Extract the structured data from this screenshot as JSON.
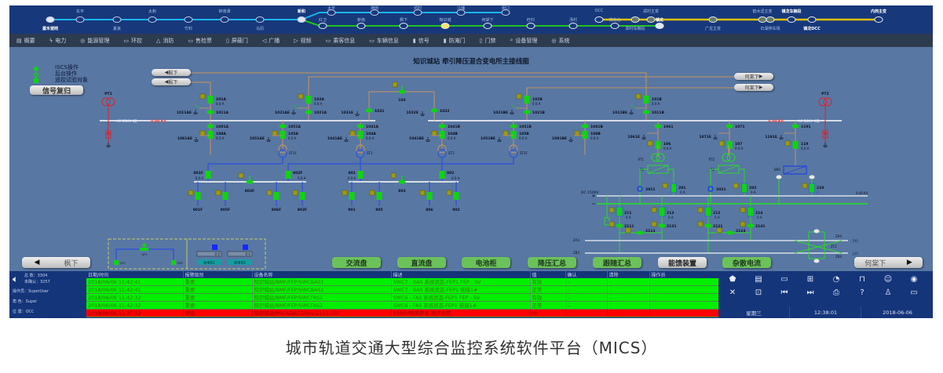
{
  "linemap": {
    "colors": {
      "line_main": "#19b4f0",
      "line_branch": "#1ec21e",
      "line_power": "#e0c000",
      "current_station": "#f5e66a"
    },
    "main_line": [
      {
        "name": "嘉禾望岗",
        "pos": "below",
        "terminal": true
      },
      {
        "name": "东平",
        "pos": "above"
      },
      {
        "name": "夏良",
        "pos": "below"
      },
      {
        "name": "太和",
        "pos": "above"
      },
      {
        "name": "竹料",
        "pos": "below"
      },
      {
        "name": "钟落潭",
        "pos": "above"
      },
      {
        "name": "马沥",
        "pos": "below"
      },
      {
        "name": "新和",
        "pos": "above",
        "terminal": true
      }
    ],
    "blue_branch": [
      "太平",
      "神岗",
      "邓村",
      "江埔",
      "街口"
    ],
    "green_branch": [
      "红卫",
      "新南",
      "枫下",
      "知识城",
      "何棠下",
      "旺村",
      "汤村",
      "镇龙北",
      "镇龙"
    ],
    "current_station": "知识城",
    "power_line": [
      {
        "name": "OCC",
        "pos": "above"
      },
      {
        "name": "郑村车辆段",
        "pos": "below"
      },
      {
        "name": "郑村主变",
        "pos": "above"
      },
      {
        "name": "广龙主变",
        "pos": "below"
      },
      {
        "name": "鹤木迳主变",
        "pos": "above"
      },
      {
        "name": "石湖停车场",
        "pos": "below"
      },
      {
        "name": "镇龙车辆段",
        "pos": "above"
      },
      {
        "name": "镇龙DCC",
        "pos": "below"
      },
      {
        "name": "内西主变",
        "pos": "above"
      }
    ]
  },
  "menu": [
    {
      "label": "概要",
      "icon": "overview-icon",
      "glyph": "▤"
    },
    {
      "label": "电力",
      "icon": "power-icon",
      "glyph": "ϟ"
    },
    {
      "label": "能源管理",
      "icon": "energy-icon",
      "glyph": "◎"
    },
    {
      "label": "环控",
      "icon": "environment-icon",
      "glyph": "▭"
    },
    {
      "label": "消防",
      "icon": "fire-icon",
      "glyph": "△"
    },
    {
      "label": "售检票",
      "icon": "ticket-icon",
      "glyph": "▭"
    },
    {
      "label": "屏蔽门",
      "icon": "screen-door-icon",
      "glyph": "▯"
    },
    {
      "label": "广播",
      "icon": "broadcast-icon",
      "glyph": "◁"
    },
    {
      "label": "视频",
      "icon": "video-icon",
      "glyph": "▷"
    },
    {
      "label": "乘客信息",
      "icon": "passenger-info-icon",
      "glyph": "▭"
    },
    {
      "label": "车辆信息",
      "icon": "vehicle-info-icon",
      "glyph": "▭"
    },
    {
      "label": "信号",
      "icon": "signal-icon",
      "glyph": "▮"
    },
    {
      "label": "防淹门",
      "icon": "flood-door-icon",
      "glyph": "▮"
    },
    {
      "label": "门禁",
      "icon": "access-control-icon",
      "glyph": "▯"
    },
    {
      "label": "设备管理",
      "icon": "device-management-icon",
      "glyph": "⌕"
    },
    {
      "label": "系统",
      "icon": "system-icon",
      "glyph": "◎"
    }
  ],
  "diagram": {
    "title": "知识城站 牵引降压混合变电所主接线图",
    "legend": [
      "ISCS操作",
      "后台操作",
      "遥控试验对象"
    ],
    "reset_button": "信号复归",
    "nav_left_top": [
      "枫下",
      "枫下"
    ],
    "nav_right_top": [
      "何棠下",
      "何棠下"
    ],
    "pt1": "PT1",
    "pt2": "PT2",
    "bus1_label": "AC 33KV I段",
    "bus2_label": "AC 33KV II段",
    "bus_voltage": "0.00 KV",
    "incoming": [
      {
        "breaker": "101A",
        "current": "0.0 A",
        "switch": "1011A",
        "ground": "1011AE"
      },
      {
        "breaker": "102A",
        "current": "0.0 A",
        "switch": "1021A",
        "ground": "1021AE"
      },
      {
        "breaker": "102B",
        "current": "0.0 A",
        "switch": "1021B",
        "ground": "1021BE"
      },
      {
        "breaker": "101B",
        "current": "0.0 A",
        "switch": "1011B",
        "ground": "1011BE"
      }
    ],
    "bus_tie": {
      "breaker": "103",
      "left": "1031",
      "left_ground": "1031E",
      "right": "1032",
      "right_ground": "1032E"
    },
    "feeders": [
      {
        "switch": "1081A",
        "breaker": "108A",
        "current": "0.0 A",
        "ground": "1081AE"
      },
      {
        "switch": "1051A",
        "breaker": "105A",
        "current": "0.0 A",
        "ground": "1051AE"
      },
      {
        "switch": "1041A",
        "breaker": "104A",
        "current": "0.0 A",
        "ground": "1041AE"
      },
      {
        "switch": "1041B",
        "breaker": "104B",
        "current": "0.0 A",
        "ground": "1041BE"
      },
      {
        "switch": "1051B",
        "breaker": "105B",
        "current": "0.0 A",
        "ground": "1051BE"
      },
      {
        "switch": "1081B",
        "breaker": "108B",
        "current": "0.0 A",
        "ground": "1081BE"
      },
      {
        "switch": "1061",
        "breaker": "106",
        "current": "0.0 A",
        "ground": "1061E"
      },
      {
        "switch": "1071",
        "breaker": "107",
        "current": "0.0 A",
        "ground": "1071E"
      },
      {
        "switch": "1191",
        "breaker": "119",
        "current": "0.0 A",
        "ground": "1191E"
      }
    ],
    "transformers": [
      "ST1F",
      "ST1",
      "ST2",
      "ST2F"
    ],
    "lv_left": {
      "in1": "801F",
      "in2": "802F",
      "current1": "0.0 A",
      "current2": "0.0 A",
      "tie": "803F",
      "feeders": [
        "901F",
        "805F",
        "806F",
        "902F"
      ]
    },
    "lv_right": {
      "in1": "801",
      "in2": "802",
      "current1": "0.0 A",
      "current2": "0.0 A",
      "tie": "803",
      "feeders": [
        "901",
        "805",
        "806",
        "902"
      ]
    },
    "rectifiers": [
      {
        "name": "RT1",
        "unit": "R1",
        "isolator": "2011",
        "breaker": "201",
        "current": "0 A"
      },
      {
        "name": "RT2",
        "unit": "R2",
        "isolator": "2021",
        "breaker": "202",
        "current": "0 A"
      }
    ],
    "inverter": {
      "name": "BRV",
      "breaker": "219",
      "current": "A"
    },
    "dc": {
      "label": "DC 1500V",
      "plus": "+",
      "minus": "−",
      "voltage": "0.00 KV",
      "feeders": [
        {
          "breaker": "211",
          "current": "0 A",
          "switch": "2111"
        },
        {
          "breaker": "213",
          "current": "0 A",
          "switch": "2131"
        },
        {
          "breaker": "212",
          "current": "0 A",
          "switch": "2121"
        },
        {
          "breaker": "214",
          "current": "0 A",
          "switch": "2141"
        }
      ],
      "ties": [
        "2113",
        "2124"
      ],
      "rails": {
        "za3": "ZA3",
        "zb3": "ZB3",
        "za4": "ZA4",
        "zb4": "ZB4",
        "zc1": "ZC1",
        "down": "下行",
        "up": "上行"
      }
    },
    "rail_potential": {
      "qf1": "QF1",
      "qf2": "QF2",
      "qf3": "QF3",
      "values": [
        "0 V",
        "0 V"
      ],
      "labels": [
        "轨电位1",
        "轨电位2"
      ]
    },
    "bottom_buttons": [
      "交流盘",
      "直流盘",
      "电池柜",
      "降压汇总",
      "跟随汇总",
      "能馈装置",
      "杂散电流"
    ],
    "active_bottom_button": "能馈装置",
    "nav_left": "枫下",
    "nav_right": "何棠下"
  },
  "alarm": {
    "total": "总  数：3304",
    "unacked": "未确认：3257",
    "operator": "操作员：SuperUser",
    "role": "角  色：Super",
    "location": "位  置：OCC",
    "columns": [
      "日期/时间",
      "报警级别",
      "设备名称",
      "描述",
      "值",
      "确认",
      "清除",
      "操作员"
    ],
    "rows": [
      {
        "time": "2018/06/06 11:42:41",
        "level": "重要",
        "device": "知识城站/BMF/FEP/SWCBAS1",
        "desc": "SWC7 - BAS 系统状态-FEP1 FEP - SV",
        "value": "有效",
        "ack": "-",
        "clear": "-",
        "operator": "",
        "severity": "ok"
      },
      {
        "time": "2018/06/06 11:42:41",
        "level": "重要",
        "device": "知识城站/BMF/FEP/SWCBAS1",
        "desc": "SWC7 - BAS 系统状态-FEP1 链接1#",
        "value": "正常",
        "ack": "-",
        "clear": "-",
        "operator": "",
        "severity": "ok"
      },
      {
        "time": "2018/06/06 11:42:32",
        "level": "重要",
        "device": "知识城站/BMF/FEP/SWCFAS1",
        "desc": "SWC6 - FAS 系统状态-FEP1 FEP - SV",
        "value": "有效",
        "ack": "-",
        "clear": "-",
        "operator": "",
        "severity": "ok"
      },
      {
        "time": "2018/06/06 11:42:32",
        "level": "重要",
        "device": "知识城站/BMF/FEP/SWCFAS1",
        "desc": "SWC6 - FAS 系统状态-FEP1 链接1#",
        "value": "正常",
        "ack": "-",
        "clear": "-",
        "operator": "",
        "severity": "ok"
      },
      {
        "time": "2018/06/06 11:37:32",
        "level": "紧急",
        "device": "知识城站/PSCADA/1500V/2111/15C",
        "desc": "1500V隔离开关 隔开位置",
        "value": "分",
        "ack": "-",
        "clear": "-",
        "operator": "",
        "severity": "crit"
      }
    ],
    "severity_colors": {
      "ok": "#00f000",
      "crit": "#ff0000"
    }
  },
  "toolbar": {
    "icons": [
      {
        "name": "alarm-filter-icon",
        "glyph": "⬟"
      },
      {
        "name": "report-icon",
        "glyph": "▤"
      },
      {
        "name": "note-icon",
        "glyph": "▭"
      },
      {
        "name": "grid-icon",
        "glyph": "⊞"
      },
      {
        "name": "power-icon",
        "glyph": "◔"
      },
      {
        "name": "lock-icon",
        "glyph": "⊓"
      },
      {
        "name": "user-lock-icon",
        "glyph": "☺"
      },
      {
        "name": "record-icon",
        "glyph": "◉"
      },
      {
        "name": "expand-icon",
        "glyph": "✕"
      },
      {
        "name": "focus-icon",
        "glyph": "⊡"
      },
      {
        "name": "previous-icon",
        "glyph": "⏮"
      },
      {
        "name": "next-icon",
        "glyph": "⏭"
      },
      {
        "name": "printer-icon",
        "glyph": "⎙"
      },
      {
        "name": "help-icon",
        "glyph": "?"
      },
      {
        "name": "shirt-icon",
        "glyph": "♙"
      },
      {
        "name": "monitor-icon",
        "glyph": "▭"
      }
    ],
    "weekday": "星期三",
    "time": "12:38:01",
    "date": "2018-06-06"
  },
  "caption": "城市轨道交通大型综合监控系统软件平台（MICS）"
}
